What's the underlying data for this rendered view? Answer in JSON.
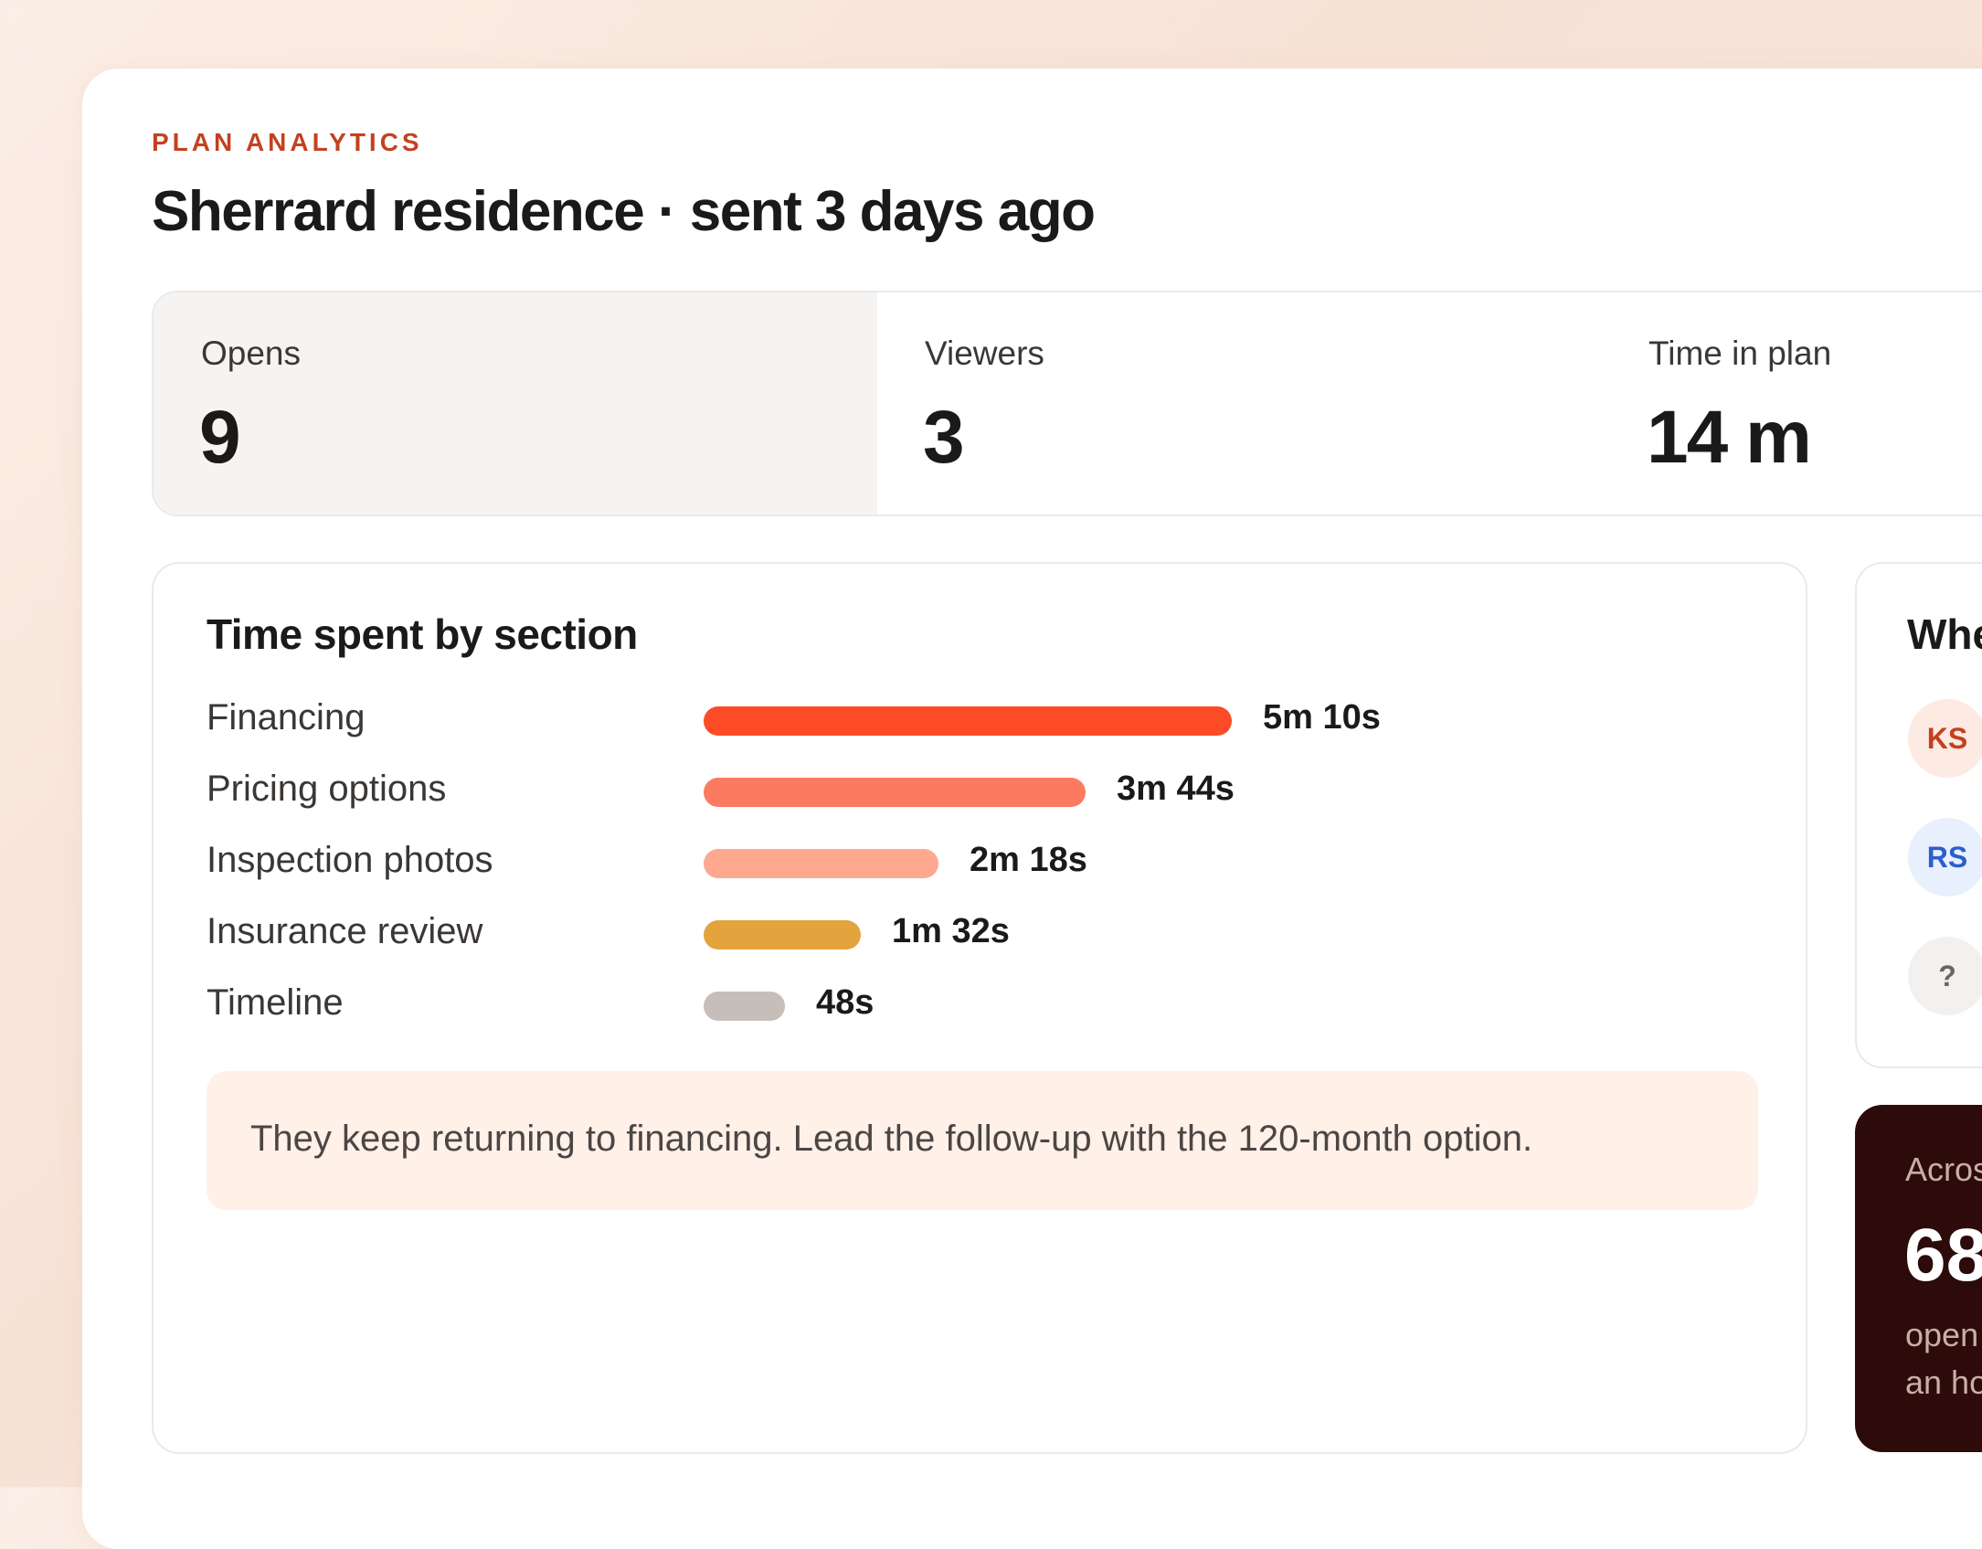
{
  "header": {
    "eyebrow": "PLAN ANALYTICS",
    "title": "Sherrard residence · sent 3 days ago"
  },
  "stats": [
    {
      "label": "Opens",
      "value": "9"
    },
    {
      "label": "Viewers",
      "value": "3"
    },
    {
      "label": "Time in plan",
      "value": "14 m"
    }
  ],
  "sections": {
    "title": "Time spent by section",
    "rows": [
      {
        "label": "Financing",
        "value": "5m 10s",
        "seconds": 310,
        "color": "#fd4b27"
      },
      {
        "label": "Pricing options",
        "value": "3m 44s",
        "seconds": 224,
        "color": "#fc7a5f"
      },
      {
        "label": "Inspection photos",
        "value": "2m 18s",
        "seconds": 138,
        "color": "#fea890"
      },
      {
        "label": "Insurance review",
        "value": "1m 32s",
        "seconds": 92,
        "color": "#e3a33d"
      },
      {
        "label": "Timeline",
        "value": "48s",
        "seconds": 48,
        "color": "#c6beb9"
      }
    ],
    "insight": "They keep returning to financing. Lead the follow-up with the 120-month option."
  },
  "viewers_panel": {
    "title_partial": "Whe",
    "viewers": [
      {
        "initials": "KS",
        "bg": "#fdeae3",
        "fg": "#c4411f"
      },
      {
        "initials": "RS",
        "bg": "#e8f0fd",
        "fg": "#2a5fcc"
      },
      {
        "initials": "?",
        "bg": "#f2f1ef",
        "fg": "#6b6560"
      }
    ]
  },
  "dark_panel": {
    "eyebrow_partial": "Acros",
    "value_partial": "68",
    "sub_line1_partial": "open",
    "sub_line2_partial": "an ho"
  }
}
